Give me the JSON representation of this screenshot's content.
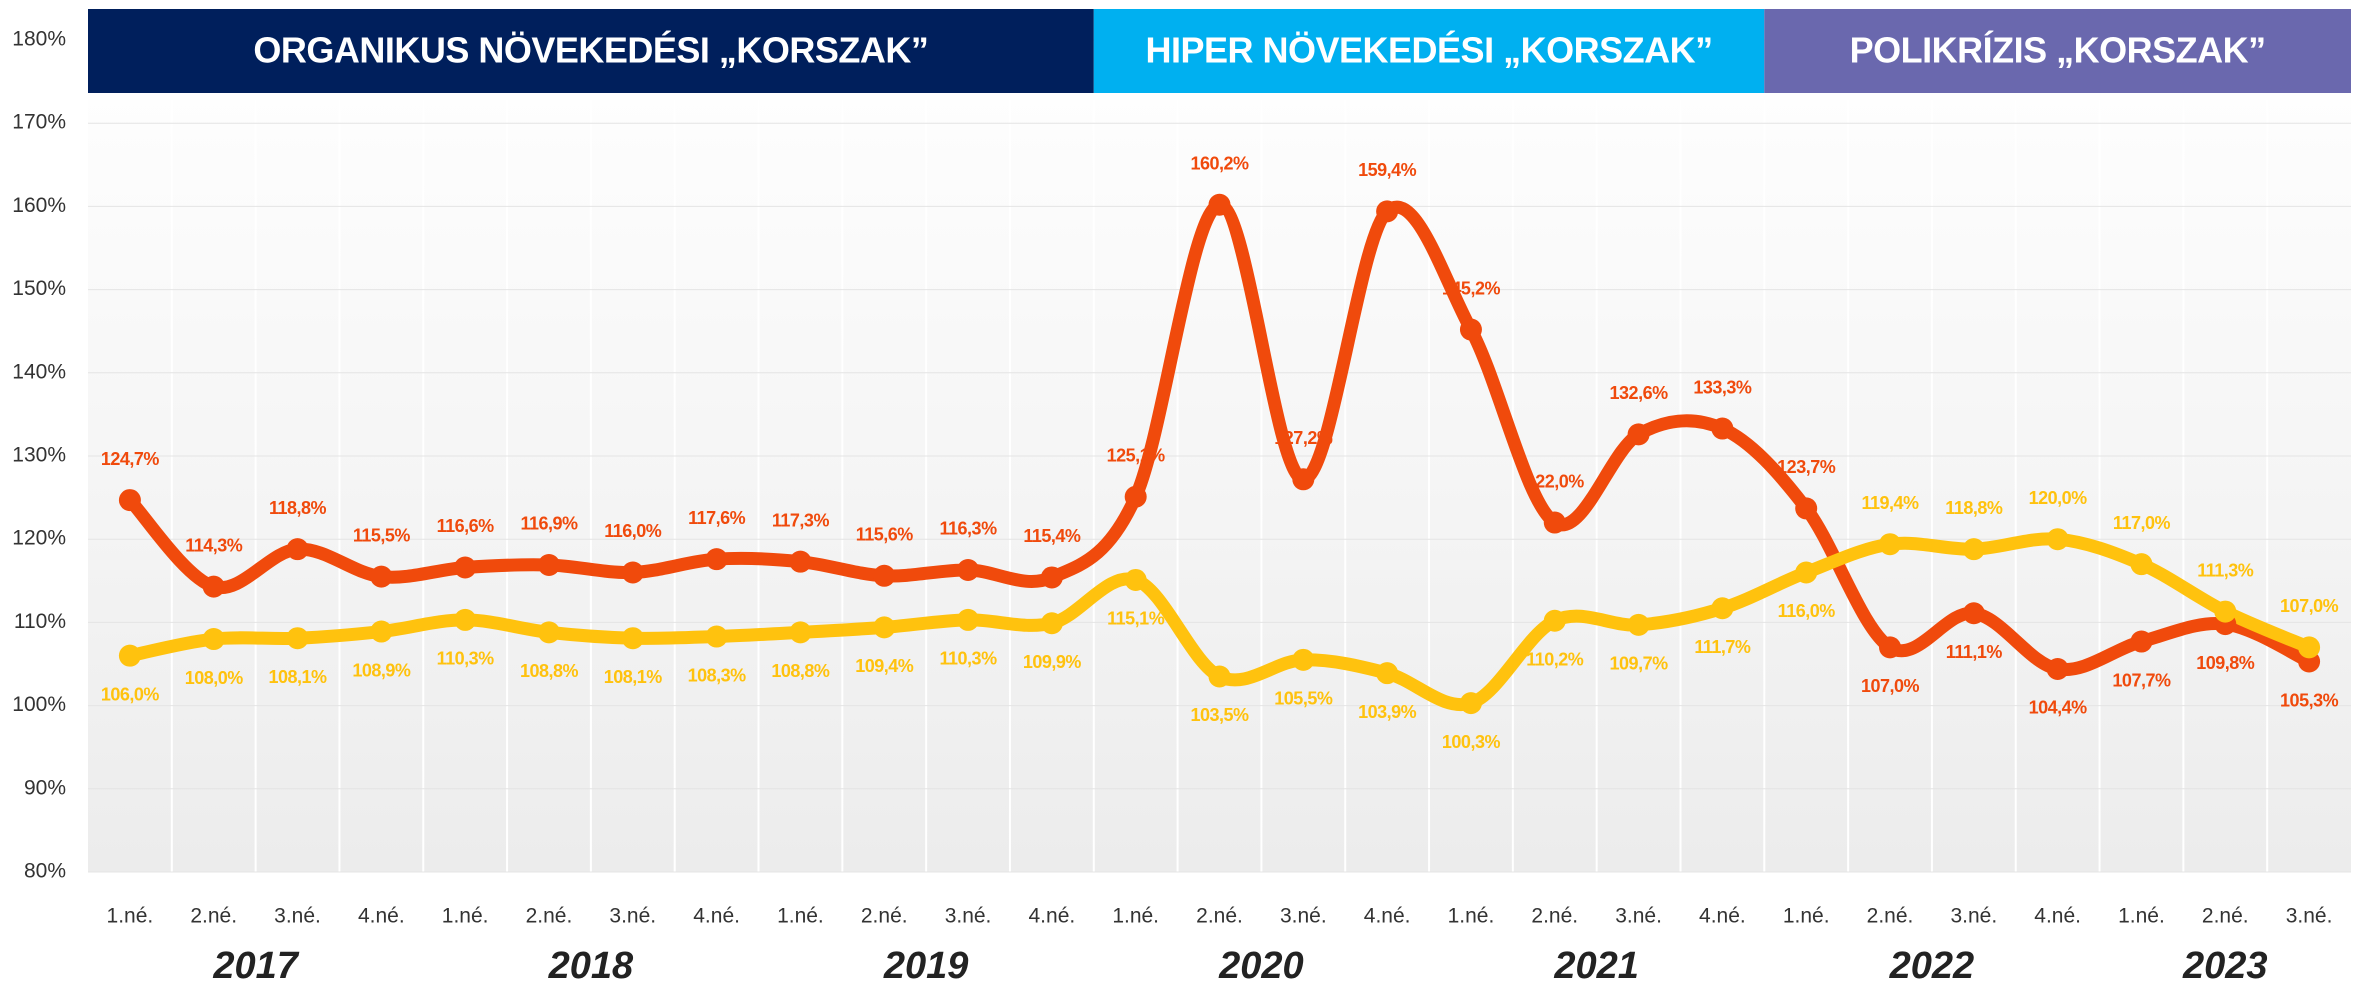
{
  "chart_data": {
    "type": "line",
    "categories": [
      "1.né.",
      "2.né.",
      "3.né.",
      "4.né.",
      "1.né.",
      "2.né.",
      "3.né.",
      "4.né.",
      "1.né.",
      "2.né.",
      "3.né.",
      "4.né.",
      "1.né.",
      "2.né.",
      "3.né.",
      "4.né.",
      "1.né.",
      "2.né.",
      "3.né.",
      "4.né.",
      "1.né.",
      "2.né.",
      "3.né.",
      "4.né.",
      "1.né.",
      "2.né.",
      "3.né."
    ],
    "eras": [
      {
        "label": "ORGANIKUS NÖVEKEDÉSI „KORSZAK”",
        "color": "#001f5c",
        "years": [
          "2017",
          "2018",
          "2019"
        ]
      },
      {
        "label": "HIPER NÖVEKEDÉSI „KORSZAK”",
        "color": "#00b0f0",
        "years": [
          "2020",
          "2021"
        ]
      },
      {
        "label": "POLIKRÍZIS „KORSZAK”",
        "color": "#6a68ae",
        "years": [
          "2022",
          "2023"
        ]
      }
    ],
    "series": [
      {
        "color": "#f04a0c",
        "values": [
          124.7,
          114.3,
          118.8,
          115.5,
          116.6,
          116.9,
          116.0,
          117.6,
          117.3,
          115.6,
          116.3,
          115.4,
          125.1,
          160.2,
          127.2,
          159.4,
          145.2,
          122.0,
          132.6,
          133.3,
          123.7,
          107.0,
          111.1,
          104.4,
          107.7,
          109.8,
          105.3
        ],
        "value_labels": [
          "124,7%",
          "114,3%",
          "118,8%",
          "115,5%",
          "116,6%",
          "116,9%",
          "116,0%",
          "117,6%",
          "117,3%",
          "115,6%",
          "116,3%",
          "115,4%",
          "125,1%",
          "160,2%",
          "127,2%",
          "159,4%",
          "145,2%",
          "122,0%",
          "132,6%",
          "133,3%",
          "123,7%",
          "107,0%",
          "111,1%",
          "104,4%",
          "107,7%",
          "109,8%",
          "105,3%"
        ]
      },
      {
        "color": "#ffc20e",
        "values": [
          106.0,
          108.0,
          108.1,
          108.9,
          110.3,
          108.8,
          108.1,
          108.3,
          108.8,
          109.4,
          110.3,
          109.9,
          115.1,
          103.5,
          105.5,
          103.9,
          100.3,
          110.2,
          109.7,
          111.7,
          116.0,
          119.4,
          118.8,
          120.0,
          117.0,
          111.3,
          107.0
        ],
        "value_labels": [
          "106,0%",
          "108,0%",
          "108,1%",
          "108,9%",
          "110,3%",
          "108,8%",
          "108,1%",
          "108,3%",
          "108,8%",
          "109,4%",
          "110,3%",
          "109,9%",
          "115,1%",
          "103,5%",
          "105,5%",
          "103,9%",
          "100,3%",
          "110,2%",
          "109,7%",
          "111,7%",
          "116,0%",
          "119,4%",
          "118,8%",
          "120,0%",
          "117,0%",
          "111,3%",
          "107,0%"
        ]
      }
    ],
    "ylim": [
      80,
      180
    ],
    "yticks": [
      {
        "value": 80,
        "label": "80%"
      },
      {
        "value": 90,
        "label": "90%"
      },
      {
        "value": 100,
        "label": "100%"
      },
      {
        "value": 110,
        "label": "110%"
      },
      {
        "value": 120,
        "label": "120%"
      },
      {
        "value": 130,
        "label": "130%"
      },
      {
        "value": 140,
        "label": "140%"
      },
      {
        "value": 150,
        "label": "150%"
      },
      {
        "value": 160,
        "label": "160%"
      },
      {
        "value": 170,
        "label": "170%"
      },
      {
        "value": 180,
        "label": "180%"
      }
    ],
    "grid": true
  }
}
